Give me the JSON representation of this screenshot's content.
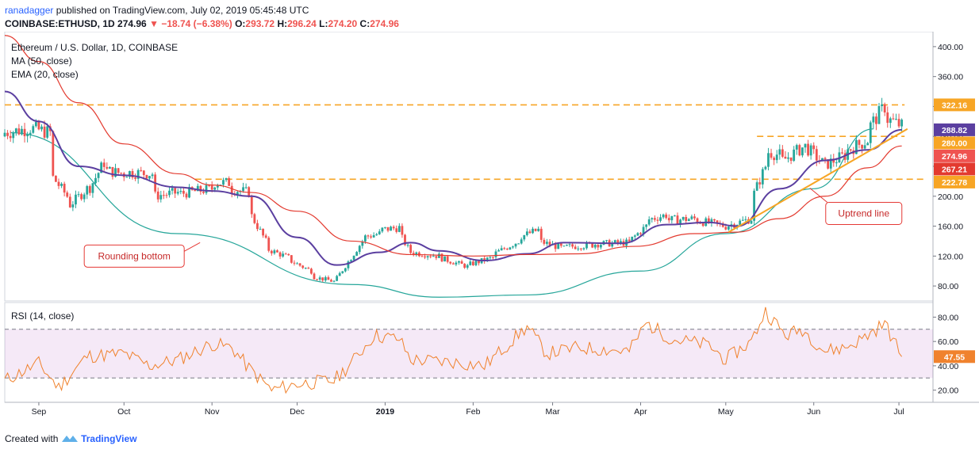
{
  "header": {
    "publisher": "ranadagger",
    "published_text": "published on TradingView.com, July 02, 2019 05:45:48 UTC",
    "symbol": "COINBASE:ETHUSD, 1D",
    "last": "274.96",
    "change_arrow": "▼",
    "change": "−18.74 (−6.38%)",
    "o_label": "O:",
    "o_value": "293.72",
    "h_label": "H:",
    "h_value": "296.24",
    "l_label": "L:",
    "l_value": "274.20",
    "c_label": "C:",
    "c_value": "274.96"
  },
  "footer": {
    "created_with": "Created with",
    "brand": "TradingView",
    "logo_icon": "tradingview-logo-icon"
  },
  "chart_data": {
    "type": "candlestick",
    "title": "Ethereum / U.S. Dollar, 1D, COINBASE",
    "indicators_legend": [
      "MA (50, close)",
      "EMA (20, close)"
    ],
    "ylim": [
      60,
      420
    ],
    "y_ticks": [
      "80.00",
      "120.00",
      "160.00",
      "200.00",
      "240.00",
      "280.00",
      "320.00",
      "360.00",
      "400.00"
    ],
    "x_ticks": [
      "Sep",
      "Oct",
      "Nov",
      "Dec",
      "2019",
      "Feb",
      "Mar",
      "Apr",
      "May",
      "Jun",
      "Jul"
    ],
    "x_tick_dates": [
      "2018-09-01",
      "2018-10-01",
      "2018-11-01",
      "2018-12-01",
      "2019-01-01",
      "2019-02-01",
      "2019-03-01",
      "2019-04-01",
      "2019-05-01",
      "2019-06-01",
      "2019-07-01"
    ],
    "x_range": [
      "2018-08-20",
      "2019-07-13"
    ],
    "price_labels": [
      {
        "text": "322.16",
        "value": 322.16,
        "color": "#f7a525"
      },
      {
        "text": "288.82",
        "value": 288.82,
        "color": "#5b3fa0"
      },
      {
        "text": "280.00",
        "value": 280.0,
        "color": "#f7a525"
      },
      {
        "text": "274.96",
        "value": 274.96,
        "color": "#ef5350"
      },
      {
        "text": "267.21",
        "value": 267.21,
        "color": "#e33a2f"
      },
      {
        "text": "222.78",
        "value": 222.78,
        "color": "#f7a525"
      }
    ],
    "horizontal_lines": [
      {
        "value": 322.16,
        "from": "2018-08-20",
        "to": "2019-07-03",
        "color": "#f7a525"
      },
      {
        "value": 280.0,
        "from": "2019-05-12",
        "to": "2019-07-03",
        "color": "#f7a525"
      },
      {
        "value": 222.78,
        "from": "2018-10-26",
        "to": "2019-07-10",
        "color": "#f7a525"
      }
    ],
    "uptrend_line": {
      "from": [
        "2019-05-02",
        152
      ],
      "to": [
        "2019-07-04",
        290
      ],
      "color": "#f7a525"
    },
    "rounding_bottom": {
      "points": [
        [
          "2018-08-22",
          285
        ],
        [
          "2018-10-20",
          150
        ],
        [
          "2018-12-20",
          82
        ],
        [
          "2019-01-20",
          65
        ],
        [
          "2019-02-20",
          68
        ],
        [
          "2019-04-01",
          100
        ],
        [
          "2019-05-01",
          150
        ],
        [
          "2019-06-01",
          210
        ],
        [
          "2019-06-22",
          290
        ]
      ],
      "color": "#26a69a"
    },
    "annotations": [
      {
        "text": "Rounding bottom",
        "date": "2018-09-17",
        "value": 120
      },
      {
        "text": "Uptrend line",
        "date": "2019-06-08",
        "value": 177
      }
    ],
    "candles_ohlc_anchor_points": [
      [
        "2018-08-20",
        280,
        285
      ],
      [
        "2018-08-28",
        290,
        292
      ],
      [
        "2018-09-05",
        285,
        230
      ],
      [
        "2018-09-11",
        200,
        185
      ],
      [
        "2018-09-18",
        210,
        205
      ],
      [
        "2018-09-24",
        245,
        235
      ],
      [
        "2018-10-01",
        230,
        232
      ],
      [
        "2018-10-11",
        230,
        200
      ],
      [
        "2018-10-20",
        205,
        203
      ],
      [
        "2018-11-01",
        210,
        218
      ],
      [
        "2018-11-07",
        218,
        210
      ],
      [
        "2018-11-14",
        205,
        180
      ],
      [
        "2018-11-20",
        140,
        130
      ],
      [
        "2018-11-28",
        118,
        115
      ],
      [
        "2018-12-06",
        100,
        93
      ],
      [
        "2018-12-14",
        86,
        85
      ],
      [
        "2018-12-24",
        140,
        145
      ],
      [
        "2018-12-30",
        150,
        155
      ],
      [
        "2019-01-06",
        158,
        150
      ],
      [
        "2019-01-10",
        125,
        125
      ],
      [
        "2019-01-20",
        120,
        118
      ],
      [
        "2019-01-30",
        106,
        108
      ],
      [
        "2019-02-08",
        118,
        122
      ],
      [
        "2019-02-17",
        140,
        145
      ],
      [
        "2019-02-24",
        155,
        140
      ],
      [
        "2019-03-05",
        130,
        132
      ],
      [
        "2019-03-15",
        135,
        136
      ],
      [
        "2019-03-28",
        138,
        140
      ],
      [
        "2019-04-03",
        160,
        168
      ],
      [
        "2019-04-10",
        175,
        168
      ],
      [
        "2019-04-20",
        170,
        168
      ],
      [
        "2019-05-01",
        160,
        160
      ],
      [
        "2019-05-10",
        170,
        195
      ],
      [
        "2019-05-15",
        240,
        260
      ],
      [
        "2019-05-20",
        255,
        245
      ],
      [
        "2019-05-28",
        265,
        270
      ],
      [
        "2019-06-04",
        245,
        240
      ],
      [
        "2019-06-12",
        255,
        260
      ],
      [
        "2019-06-20",
        275,
        290
      ],
      [
        "2019-06-26",
        320,
        305
      ],
      [
        "2019-07-02",
        294,
        274.96
      ]
    ],
    "series": [
      {
        "name": "EMA (20, close)",
        "color": "#5b3fa0",
        "points": [
          [
            "2018-08-20",
            340
          ],
          [
            "2018-09-01",
            300
          ],
          [
            "2018-09-15",
            240
          ],
          [
            "2018-10-01",
            228
          ],
          [
            "2018-10-20",
            212
          ],
          [
            "2018-11-01",
            207
          ],
          [
            "2018-11-15",
            200
          ],
          [
            "2018-12-01",
            145
          ],
          [
            "2018-12-15",
            108
          ],
          [
            "2018-12-30",
            125
          ],
          [
            "2019-01-10",
            138
          ],
          [
            "2019-01-20",
            127
          ],
          [
            "2019-02-05",
            114
          ],
          [
            "2019-02-20",
            123
          ],
          [
            "2019-03-05",
            138
          ],
          [
            "2019-03-25",
            137
          ],
          [
            "2019-04-10",
            162
          ],
          [
            "2019-04-25",
            165
          ],
          [
            "2019-05-05",
            160
          ],
          [
            "2019-05-20",
            210
          ],
          [
            "2019-06-05",
            248
          ],
          [
            "2019-06-20",
            262
          ],
          [
            "2019-07-02",
            288.82
          ]
        ]
      },
      {
        "name": "MA (50, close)",
        "color": "#e33a2f",
        "points": [
          [
            "2018-08-20",
            415
          ],
          [
            "2018-09-01",
            380
          ],
          [
            "2018-09-15",
            325
          ],
          [
            "2018-10-01",
            270
          ],
          [
            "2018-10-20",
            230
          ],
          [
            "2018-11-01",
            215
          ],
          [
            "2018-11-15",
            205
          ],
          [
            "2018-12-01",
            180
          ],
          [
            "2018-12-20",
            140
          ],
          [
            "2019-01-10",
            122
          ],
          [
            "2019-02-01",
            120
          ],
          [
            "2019-02-20",
            122
          ],
          [
            "2019-03-10",
            123
          ],
          [
            "2019-03-30",
            133
          ],
          [
            "2019-04-20",
            150
          ],
          [
            "2019-05-05",
            152
          ],
          [
            "2019-05-20",
            170
          ],
          [
            "2019-06-05",
            200
          ],
          [
            "2019-06-20",
            238
          ],
          [
            "2019-07-02",
            267.21
          ]
        ]
      }
    ],
    "rsi": {
      "title": "RSI (14, close)",
      "ylim": [
        10,
        92
      ],
      "y_ticks": [
        "20.00",
        "40.00",
        "60.00",
        "80.00"
      ],
      "band": [
        30,
        70
      ],
      "last_label": "47.55",
      "color": "#f0822d",
      "points": [
        [
          "2018-08-20",
          28
        ],
        [
          "2018-09-01",
          42
        ],
        [
          "2018-09-08",
          22
        ],
        [
          "2018-09-18",
          48
        ],
        [
          "2018-10-01",
          50
        ],
        [
          "2018-10-10",
          40
        ],
        [
          "2018-10-20",
          45
        ],
        [
          "2018-11-01",
          58
        ],
        [
          "2018-11-08",
          55
        ],
        [
          "2018-11-14",
          38
        ],
        [
          "2018-11-22",
          20
        ],
        [
          "2018-12-01",
          25
        ],
        [
          "2018-12-14",
          28
        ],
        [
          "2018-12-20",
          42
        ],
        [
          "2018-12-28",
          65
        ],
        [
          "2019-01-06",
          62
        ],
        [
          "2019-01-10",
          45
        ],
        [
          "2019-01-25",
          43
        ],
        [
          "2019-02-05",
          40
        ],
        [
          "2019-02-12",
          55
        ],
        [
          "2019-02-20",
          72
        ],
        [
          "2019-02-27",
          50
        ],
        [
          "2019-03-10",
          55
        ],
        [
          "2019-03-28",
          52
        ],
        [
          "2019-04-03",
          75
        ],
        [
          "2019-04-12",
          62
        ],
        [
          "2019-04-25",
          57
        ],
        [
          "2019-05-01",
          45
        ],
        [
          "2019-05-10",
          60
        ],
        [
          "2019-05-15",
          85
        ],
        [
          "2019-05-22",
          65
        ],
        [
          "2019-05-28",
          70
        ],
        [
          "2019-06-05",
          52
        ],
        [
          "2019-06-12",
          55
        ],
        [
          "2019-06-18",
          62
        ],
        [
          "2019-06-26",
          75
        ],
        [
          "2019-07-02",
          47.55
        ]
      ]
    }
  }
}
